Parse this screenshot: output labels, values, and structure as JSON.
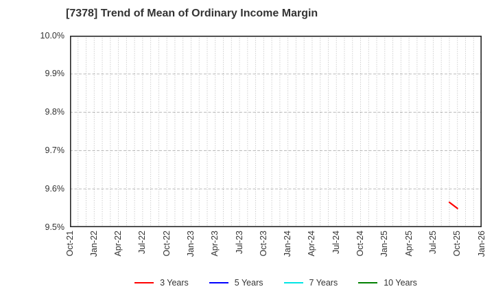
{
  "header": {
    "title": "[7378]  Trend of Mean of Ordinary Income Margin"
  },
  "colors": {
    "background": "#ffffff",
    "frame": "#262626",
    "grid": "#b0b0b0",
    "text": "#333333",
    "series_3_years": "#ff0000",
    "series_5_years": "#0000ff",
    "series_7_years": "#00e5e5",
    "series_10_years": "#008000"
  },
  "chart_data": {
    "type": "line",
    "title": "[7378]  Trend of Mean of Ordinary Income Margin",
    "xlabel": "",
    "ylabel": "",
    "ylim": [
      9.5,
      10.0
    ],
    "grid": "on",
    "legend_position": "bottom",
    "yticks": [
      {
        "value": 10.0,
        "label": "10.0%"
      },
      {
        "value": 9.9,
        "label": "9.9%"
      },
      {
        "value": 9.8,
        "label": "9.8%"
      },
      {
        "value": 9.7,
        "label": "9.7%"
      },
      {
        "value": 9.6,
        "label": "9.6%"
      },
      {
        "value": 9.5,
        "label": "9.5%"
      }
    ],
    "x_axis": {
      "start_month": "Oct-21",
      "end_month": "Jan-26",
      "total_month_intervals": 51,
      "tick_labels": [
        {
          "label": "Oct-21",
          "month_index": 0
        },
        {
          "label": "Jan-22",
          "month_index": 3
        },
        {
          "label": "Apr-22",
          "month_index": 6
        },
        {
          "label": "Jul-22",
          "month_index": 9
        },
        {
          "label": "Oct-22",
          "month_index": 12
        },
        {
          "label": "Jan-23",
          "month_index": 15
        },
        {
          "label": "Apr-23",
          "month_index": 18
        },
        {
          "label": "Jul-23",
          "month_index": 21
        },
        {
          "label": "Oct-23",
          "month_index": 24
        },
        {
          "label": "Jan-24",
          "month_index": 27
        },
        {
          "label": "Apr-24",
          "month_index": 30
        },
        {
          "label": "Jul-24",
          "month_index": 33
        },
        {
          "label": "Oct-24",
          "month_index": 36
        },
        {
          "label": "Jan-25",
          "month_index": 39
        },
        {
          "label": "Apr-25",
          "month_index": 42
        },
        {
          "label": "Jul-25",
          "month_index": 45
        },
        {
          "label": "Oct-25",
          "month_index": 48
        },
        {
          "label": "Jan-26",
          "month_index": 51
        }
      ]
    },
    "series": [
      {
        "name": "3 Years",
        "color": "#ff0000",
        "points": [
          {
            "x_label": "Sep-25",
            "month_index": 47,
            "value_pct": 9.565
          },
          {
            "x_label": "Oct-25",
            "month_index": 48,
            "value_pct": 9.549
          }
        ]
      },
      {
        "name": "5 Years",
        "color": "#0000ff",
        "points": []
      },
      {
        "name": "7 Years",
        "color": "#00e5e5",
        "points": []
      },
      {
        "name": "10 Years",
        "color": "#008000",
        "points": []
      }
    ]
  }
}
